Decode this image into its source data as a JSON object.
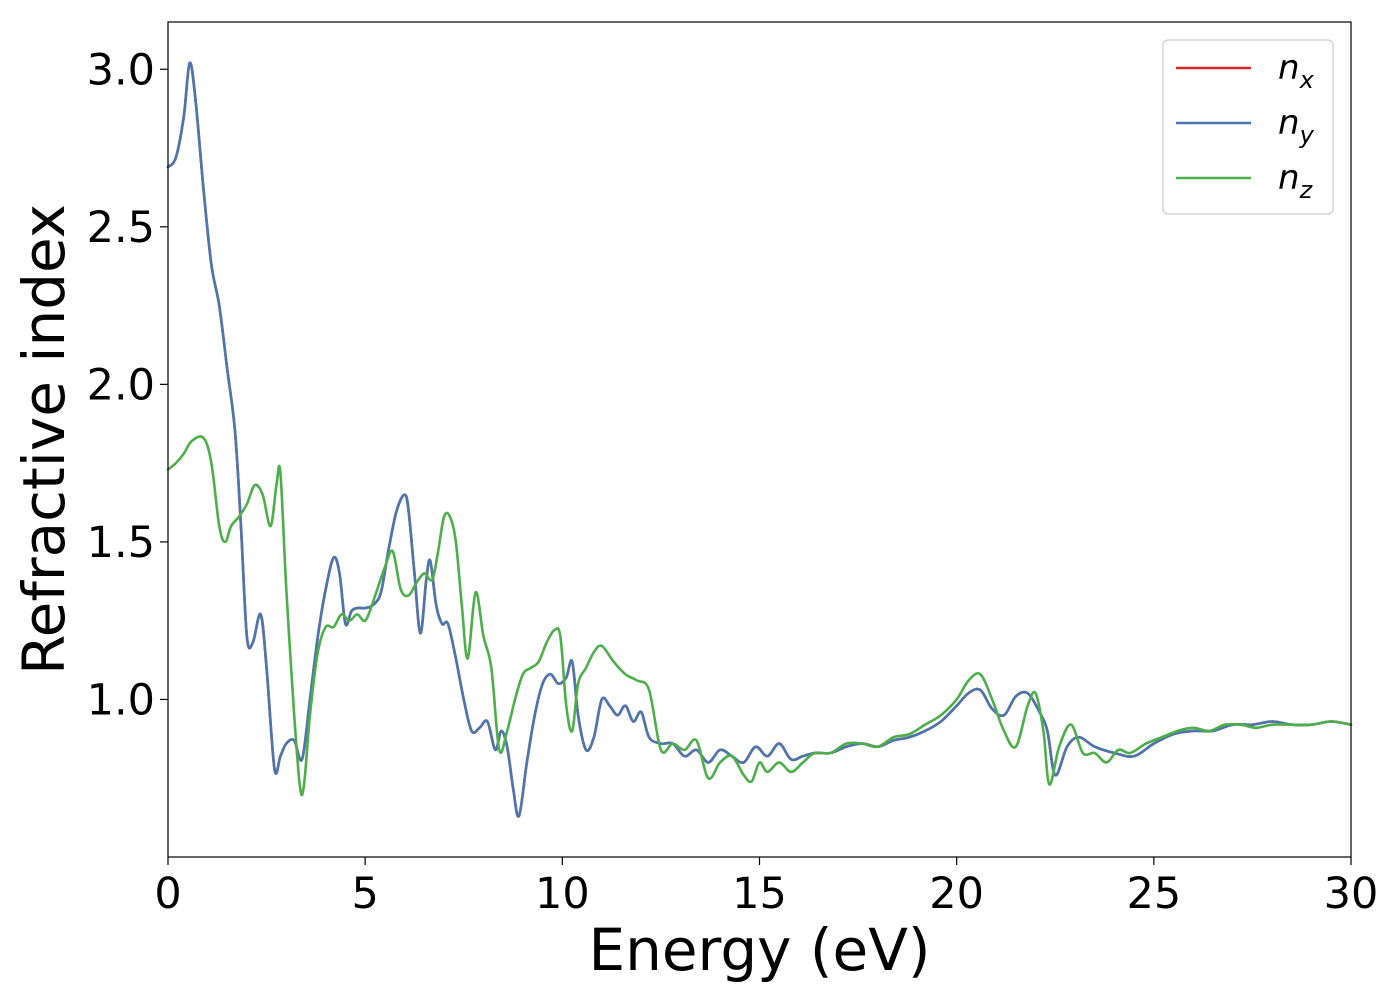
{
  "chart_data": {
    "type": "line",
    "xlabel": "Energy (eV)",
    "ylabel": "Refractive index",
    "xlim": [
      0,
      30
    ],
    "ylim": [
      0.5,
      3.15
    ],
    "xticks": [
      0,
      5,
      10,
      15,
      20,
      25,
      30
    ],
    "xtick_labels": [
      "0",
      "5",
      "10",
      "15",
      "20",
      "25",
      "30"
    ],
    "yticks": [
      1.0,
      1.5,
      2.0,
      2.5,
      3.0
    ],
    "ytick_labels": [
      "1.0",
      "1.5",
      "2.0",
      "2.5",
      "3.0"
    ],
    "grid": false,
    "legend_position": "top-right",
    "series": [
      {
        "name": "n",
        "sub": "x",
        "color": "#d62728",
        "x": [
          0,
          0.2,
          0.4,
          0.55,
          0.7,
          0.9,
          1.1,
          1.3,
          1.5,
          1.7,
          1.85,
          2.0,
          2.15,
          2.35,
          2.5,
          2.7,
          2.85,
          3.0,
          3.2,
          3.4,
          3.6,
          3.8,
          4.0,
          4.2,
          4.35,
          4.5,
          4.65,
          4.8,
          5.0,
          5.2,
          5.4,
          5.6,
          5.8,
          6.0,
          6.1,
          6.25,
          6.4,
          6.55,
          6.65,
          6.8,
          6.95,
          7.1,
          7.3,
          7.5,
          7.7,
          7.9,
          8.1,
          8.3,
          8.45,
          8.6,
          8.75,
          8.9,
          9.1,
          9.3,
          9.5,
          9.7,
          9.9,
          10.1,
          10.25,
          10.4,
          10.6,
          10.8,
          11.0,
          11.2,
          11.4,
          11.6,
          11.8,
          12.0,
          12.2,
          12.5,
          12.8,
          13.1,
          13.4,
          13.7,
          14.0,
          14.3,
          14.6,
          14.9,
          15.2,
          15.5,
          15.8,
          16.1,
          16.4,
          16.8,
          17.2,
          17.6,
          18.0,
          18.4,
          18.8,
          19.2,
          19.6,
          20.0,
          20.3,
          20.6,
          20.9,
          21.2,
          21.5,
          21.8,
          22.1,
          22.3,
          22.5,
          22.8,
          23.1,
          23.5,
          24.0,
          24.5,
          25.0,
          25.5,
          26.0,
          26.5,
          27.0,
          27.5,
          28.0,
          28.5,
          29.0,
          29.5,
          30.0
        ],
        "y": [
          2.69,
          2.72,
          2.85,
          3.02,
          2.9,
          2.62,
          2.38,
          2.25,
          2.05,
          1.85,
          1.55,
          1.2,
          1.18,
          1.27,
          1.1,
          0.78,
          0.82,
          0.86,
          0.87,
          0.81,
          1.0,
          1.2,
          1.35,
          1.45,
          1.4,
          1.24,
          1.28,
          1.29,
          1.29,
          1.3,
          1.34,
          1.48,
          1.6,
          1.65,
          1.6,
          1.4,
          1.21,
          1.38,
          1.44,
          1.3,
          1.24,
          1.24,
          1.13,
          1.0,
          0.9,
          0.91,
          0.93,
          0.84,
          0.9,
          0.85,
          0.72,
          0.63,
          0.8,
          0.95,
          1.05,
          1.08,
          1.05,
          1.07,
          1.12,
          0.95,
          0.84,
          0.88,
          1.0,
          0.98,
          0.95,
          0.98,
          0.93,
          0.96,
          0.88,
          0.86,
          0.86,
          0.82,
          0.84,
          0.8,
          0.84,
          0.82,
          0.8,
          0.85,
          0.82,
          0.86,
          0.81,
          0.82,
          0.83,
          0.83,
          0.85,
          0.86,
          0.85,
          0.87,
          0.88,
          0.9,
          0.93,
          0.98,
          1.02,
          1.03,
          0.97,
          0.95,
          1.01,
          1.02,
          0.96,
          0.9,
          0.76,
          0.85,
          0.88,
          0.85,
          0.83,
          0.82,
          0.86,
          0.89,
          0.9,
          0.9,
          0.92,
          0.92,
          0.93,
          0.92,
          0.92,
          0.93,
          0.92
        ]
      },
      {
        "name": "n",
        "sub": "y",
        "color": "#4a77b0",
        "x": [
          0,
          0.2,
          0.4,
          0.55,
          0.7,
          0.9,
          1.1,
          1.3,
          1.5,
          1.7,
          1.85,
          2.0,
          2.15,
          2.35,
          2.5,
          2.7,
          2.85,
          3.0,
          3.2,
          3.4,
          3.6,
          3.8,
          4.0,
          4.2,
          4.35,
          4.5,
          4.65,
          4.8,
          5.0,
          5.2,
          5.4,
          5.6,
          5.8,
          6.0,
          6.1,
          6.25,
          6.4,
          6.55,
          6.65,
          6.8,
          6.95,
          7.1,
          7.3,
          7.5,
          7.7,
          7.9,
          8.1,
          8.3,
          8.45,
          8.6,
          8.75,
          8.9,
          9.1,
          9.3,
          9.5,
          9.7,
          9.9,
          10.1,
          10.25,
          10.4,
          10.6,
          10.8,
          11.0,
          11.2,
          11.4,
          11.6,
          11.8,
          12.0,
          12.2,
          12.5,
          12.8,
          13.1,
          13.4,
          13.7,
          14.0,
          14.3,
          14.6,
          14.9,
          15.2,
          15.5,
          15.8,
          16.1,
          16.4,
          16.8,
          17.2,
          17.6,
          18.0,
          18.4,
          18.8,
          19.2,
          19.6,
          20.0,
          20.3,
          20.6,
          20.9,
          21.2,
          21.5,
          21.8,
          22.1,
          22.3,
          22.5,
          22.8,
          23.1,
          23.5,
          24.0,
          24.5,
          25.0,
          25.5,
          26.0,
          26.5,
          27.0,
          27.5,
          28.0,
          28.5,
          29.0,
          29.5,
          30.0
        ],
        "y": [
          2.69,
          2.72,
          2.85,
          3.02,
          2.9,
          2.62,
          2.38,
          2.25,
          2.05,
          1.85,
          1.55,
          1.2,
          1.18,
          1.27,
          1.1,
          0.78,
          0.82,
          0.86,
          0.87,
          0.81,
          1.0,
          1.2,
          1.35,
          1.45,
          1.4,
          1.24,
          1.28,
          1.29,
          1.29,
          1.3,
          1.34,
          1.48,
          1.6,
          1.65,
          1.6,
          1.4,
          1.21,
          1.38,
          1.44,
          1.3,
          1.24,
          1.24,
          1.13,
          1.0,
          0.9,
          0.91,
          0.93,
          0.84,
          0.9,
          0.85,
          0.72,
          0.63,
          0.8,
          0.95,
          1.05,
          1.08,
          1.05,
          1.07,
          1.12,
          0.95,
          0.84,
          0.88,
          1.0,
          0.98,
          0.95,
          0.98,
          0.93,
          0.96,
          0.88,
          0.86,
          0.86,
          0.82,
          0.84,
          0.8,
          0.84,
          0.82,
          0.8,
          0.85,
          0.82,
          0.86,
          0.81,
          0.82,
          0.83,
          0.83,
          0.85,
          0.86,
          0.85,
          0.87,
          0.88,
          0.9,
          0.93,
          0.98,
          1.02,
          1.03,
          0.97,
          0.95,
          1.01,
          1.02,
          0.96,
          0.9,
          0.76,
          0.85,
          0.88,
          0.85,
          0.83,
          0.82,
          0.86,
          0.89,
          0.9,
          0.9,
          0.92,
          0.92,
          0.93,
          0.92,
          0.92,
          0.93,
          0.92
        ]
      },
      {
        "name": "n",
        "sub": "z",
        "color": "#4daf4a",
        "x": [
          0,
          0.2,
          0.4,
          0.6,
          0.9,
          1.1,
          1.3,
          1.45,
          1.6,
          1.8,
          2.0,
          2.2,
          2.4,
          2.6,
          2.75,
          2.85,
          3.0,
          3.2,
          3.35,
          3.45,
          3.6,
          3.8,
          4.0,
          4.2,
          4.4,
          4.6,
          4.8,
          5.0,
          5.2,
          5.5,
          5.7,
          5.9,
          6.1,
          6.3,
          6.5,
          6.7,
          6.85,
          7.0,
          7.15,
          7.3,
          7.45,
          7.6,
          7.8,
          8.0,
          8.2,
          8.4,
          8.6,
          8.8,
          9.0,
          9.2,
          9.4,
          9.6,
          9.8,
          9.95,
          10.1,
          10.25,
          10.4,
          10.6,
          10.8,
          11.0,
          11.3,
          11.6,
          11.9,
          12.2,
          12.5,
          12.8,
          13.1,
          13.4,
          13.7,
          14.0,
          14.3,
          14.6,
          14.8,
          15.0,
          15.2,
          15.5,
          15.8,
          16.1,
          16.4,
          16.8,
          17.2,
          17.6,
          18.0,
          18.4,
          18.8,
          19.2,
          19.6,
          20.0,
          20.3,
          20.6,
          20.9,
          21.2,
          21.5,
          21.8,
          22.0,
          22.2,
          22.35,
          22.6,
          22.9,
          23.2,
          23.5,
          23.8,
          24.1,
          24.4,
          24.8,
          25.2,
          25.6,
          26.0,
          26.4,
          26.8,
          27.2,
          27.6,
          28.0,
          28.5,
          29.0,
          29.5,
          30.0
        ],
        "y": [
          1.73,
          1.75,
          1.78,
          1.82,
          1.83,
          1.75,
          1.55,
          1.5,
          1.55,
          1.58,
          1.62,
          1.68,
          1.65,
          1.55,
          1.68,
          1.72,
          1.35,
          0.95,
          0.72,
          0.73,
          0.95,
          1.15,
          1.23,
          1.23,
          1.27,
          1.25,
          1.27,
          1.25,
          1.31,
          1.42,
          1.47,
          1.35,
          1.33,
          1.37,
          1.4,
          1.38,
          1.47,
          1.58,
          1.58,
          1.5,
          1.3,
          1.13,
          1.34,
          1.2,
          1.1,
          0.84,
          0.9,
          1.0,
          1.08,
          1.1,
          1.12,
          1.18,
          1.22,
          1.2,
          0.98,
          0.9,
          1.05,
          1.1,
          1.15,
          1.17,
          1.12,
          1.08,
          1.06,
          1.03,
          0.84,
          0.86,
          0.84,
          0.87,
          0.75,
          0.8,
          0.82,
          0.76,
          0.74,
          0.8,
          0.77,
          0.8,
          0.77,
          0.8,
          0.83,
          0.83,
          0.86,
          0.86,
          0.85,
          0.88,
          0.89,
          0.92,
          0.95,
          1.0,
          1.06,
          1.08,
          1.0,
          0.9,
          0.85,
          0.98,
          1.02,
          0.9,
          0.73,
          0.85,
          0.92,
          0.83,
          0.83,
          0.8,
          0.84,
          0.83,
          0.86,
          0.88,
          0.9,
          0.91,
          0.9,
          0.92,
          0.92,
          0.91,
          0.92,
          0.92,
          0.92,
          0.93,
          0.92
        ]
      }
    ]
  }
}
